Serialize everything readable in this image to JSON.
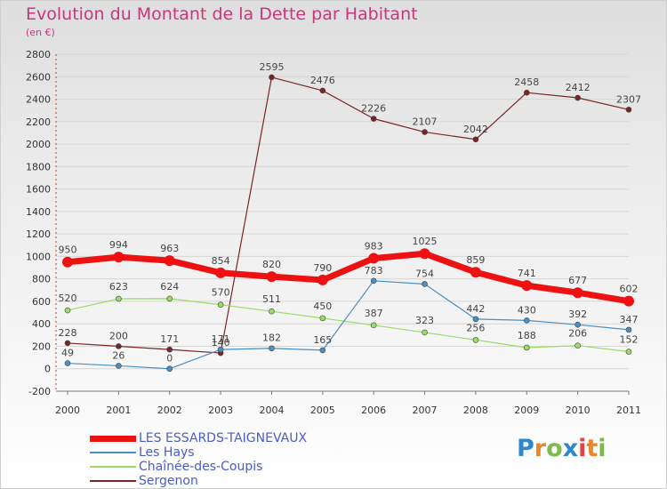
{
  "title": "Evolution du Montant de la Dette par Habitant",
  "subtitle": "(en €)",
  "logo_text": "Proxiti",
  "chart_data": {
    "type": "line",
    "x": [
      "2000",
      "2001",
      "2002",
      "2003",
      "2004",
      "2005",
      "2006",
      "2007",
      "2008",
      "2009",
      "2010",
      "2011"
    ],
    "ylim": [
      -200,
      2800
    ],
    "yticks": [
      -200,
      0,
      200,
      400,
      600,
      800,
      1000,
      1200,
      1400,
      1600,
      1800,
      2000,
      2200,
      2400,
      2600,
      2800
    ],
    "grid": true,
    "legend_position": "bottom-left",
    "series": [
      {
        "name": "LES ESSARDS-TAIGNEVAUX",
        "color": "#ee1111",
        "values": [
          950,
          994,
          963,
          854,
          820,
          790,
          983,
          1025,
          859,
          741,
          677,
          602
        ],
        "labels": [
          "950",
          "994",
          "963",
          "854",
          "820",
          "790",
          "983",
          "1025",
          "859",
          "741",
          "677",
          "602"
        ]
      },
      {
        "name": "Les Hays",
        "color": "#4a8fc4",
        "values": [
          49,
          26,
          0,
          171,
          182,
          165,
          783,
          754,
          442,
          430,
          392,
          347
        ],
        "labels": [
          "49",
          "26",
          "0",
          "171",
          "182",
          "165",
          "783",
          "754",
          "442",
          "430",
          "392",
          "347"
        ]
      },
      {
        "name": "Chaînée-des-Coupis",
        "color": "#99dd66",
        "values": [
          520,
          623,
          624,
          570,
          511,
          450,
          387,
          323,
          256,
          188,
          206,
          152
        ],
        "labels": [
          "520",
          "623",
          "624",
          "570",
          "511",
          "450",
          "387",
          "323",
          "256",
          "188",
          "206",
          "152"
        ]
      },
      {
        "name": "Sergenon",
        "color": "#7a2525",
        "values": [
          228,
          200,
          171,
          140,
          2595,
          2476,
          2226,
          2107,
          2042,
          2458,
          2412,
          2307
        ],
        "labels": [
          "228",
          "200",
          "171",
          "140",
          "2595",
          "2476",
          "2226",
          "2107",
          "2042",
          "2458",
          "2412",
          "2307"
        ]
      }
    ]
  }
}
